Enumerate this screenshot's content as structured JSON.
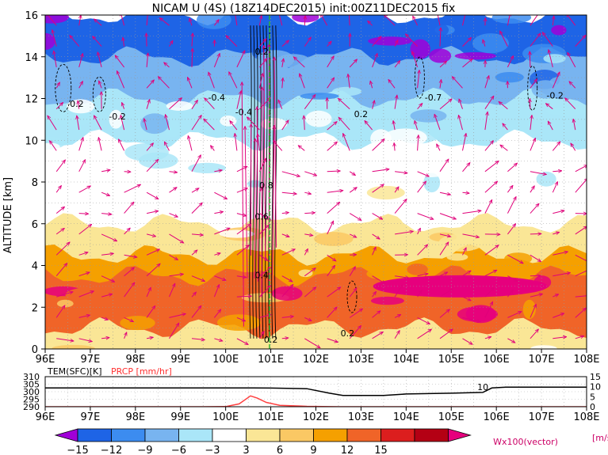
{
  "chart_data": [
    {
      "type": "heatmap",
      "title": "NICAM U (4S) (18Z14DEC2015) init:00Z11DEC2015 fix",
      "ylabel": "ALTITUDE [km]",
      "xlabel": "",
      "x_ticks": [
        "96E",
        "97E",
        "98E",
        "99E",
        "100E",
        "101E",
        "102E",
        "103E",
        "104E",
        "105E",
        "106E",
        "107E",
        "108E"
      ],
      "y_ticks": [
        0,
        2,
        4,
        6,
        8,
        10,
        12,
        14,
        16
      ],
      "xlim": [
        96,
        108
      ],
      "ylim": [
        0,
        16
      ],
      "colorbar": {
        "ticks": [
          -15,
          -12,
          -9,
          -6,
          -3,
          3,
          6,
          9,
          12,
          15
        ],
        "unit": "[m/s]",
        "colors": [
          "#a000d8",
          "#1e64e6",
          "#3c8cf0",
          "#78b4f0",
          "#aae6f8",
          "#ffffff",
          "#fae696",
          "#fac864",
          "#f5a000",
          "#f06428",
          "#dc1e1e",
          "#b40014",
          "#e6007d"
        ]
      },
      "vector_label": "Wx100(vector)",
      "contour_labels": [
        "0.2",
        "-0.2",
        "-0.4",
        "-0.7",
        "0.4",
        "0.6",
        "0.8"
      ],
      "layers": [
        {
          "alt_top": 1,
          "u": 4
        },
        {
          "alt_top": 2.5,
          "u": 12
        },
        {
          "alt_top": 3.5,
          "u": 14
        },
        {
          "alt_top": 4.5,
          "u": 9
        },
        {
          "alt_top": 6,
          "u": 5
        },
        {
          "alt_top": 7.5,
          "u": 2
        },
        {
          "alt_top": 10,
          "u": -1
        },
        {
          "alt_top": 12,
          "u": -4
        },
        {
          "alt_top": 14,
          "u": -9
        },
        {
          "alt_top": 16,
          "u": -14
        }
      ]
    },
    {
      "type": "line",
      "left_label": "TEM(SFC)[K]",
      "right_label": "PRCP [mm/hr]",
      "left_ticks": [
        290,
        295,
        300,
        305,
        310
      ],
      "right_ticks": [
        0,
        5,
        10,
        15
      ],
      "x_ticks": [
        "96E",
        "97E",
        "98E",
        "99E",
        "100E",
        "101E",
        "102E",
        "103E",
        "104E",
        "105E",
        "106E",
        "107E",
        "108E"
      ],
      "annotation": "10",
      "series": [
        {
          "label": "TEM(SFC)[K]",
          "color": "#000000",
          "x": [
            96,
            97,
            98,
            99,
            100,
            100.6,
            101,
            101.8,
            102.3,
            102.6,
            103,
            103.5,
            104,
            105,
            105.7,
            105.9,
            106.2,
            107,
            108
          ],
          "y": [
            302.5,
            302.5,
            302.5,
            302.5,
            302.5,
            302.5,
            302.4,
            302,
            299,
            297.5,
            297.5,
            297.5,
            298.5,
            299,
            299.5,
            302.5,
            303,
            303,
            303
          ]
        },
        {
          "label": "PRCP [mm/hr]",
          "color": "#ff4040",
          "x": [
            96,
            99.5,
            100,
            100.3,
            100.55,
            100.7,
            100.9,
            101.2,
            101.8,
            102.5,
            108
          ],
          "y": [
            0,
            0,
            0.1,
            2,
            7.5,
            6,
            3,
            1,
            0.3,
            0,
            0
          ]
        }
      ]
    }
  ],
  "ui": {
    "cb_unit": "[m/s]",
    "vector_label": "Wx100(vector)",
    "tem_label": "TEM(SFC)[K]",
    "prcp_label": "PRCP [mm/hr]"
  }
}
